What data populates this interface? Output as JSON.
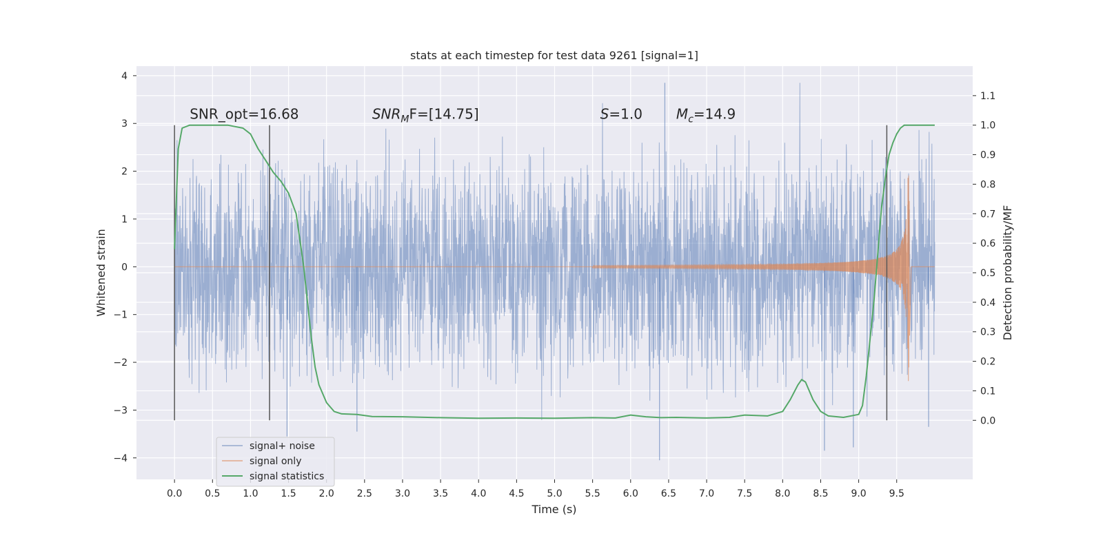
{
  "chart_data": {
    "type": "line",
    "title": "stats at each timestep for test data 9261 [signal=1]",
    "xlabel": "Time (s)",
    "ylabel_left": "Whitened strain",
    "ylabel_right": "Detection probability/MF",
    "xlim": [
      -0.5,
      10.5
    ],
    "ylim_left": [
      -4.45,
      4.2
    ],
    "ylim_right": [
      -0.2,
      1.2
    ],
    "x_ticks": [
      "0.0",
      "0.5",
      "1.0",
      "1.5",
      "2.0",
      "2.5",
      "3.0",
      "3.5",
      "4.0",
      "4.5",
      "5.0",
      "5.5",
      "6.0",
      "6.5",
      "7.0",
      "7.5",
      "8.0",
      "8.5",
      "9.0",
      "9.5"
    ],
    "y_ticks_left": [
      "−4",
      "−3",
      "−2",
      "−1",
      "0",
      "1",
      "2",
      "3",
      "4"
    ],
    "y_ticks_right": [
      "0.0",
      "0.1",
      "0.2",
      "0.3",
      "0.4",
      "0.5",
      "0.6",
      "0.7",
      "0.8",
      "0.9",
      "1.0",
      "1.1"
    ],
    "grid": true,
    "legend_position": "lower-left",
    "series": [
      {
        "name": "signal+ noise",
        "color": "#4c72b0",
        "axis": "left",
        "x_range": [
          0,
          10
        ],
        "envelope": 1.6,
        "peak_max": 3.85,
        "peak_min": -4.05
      },
      {
        "name": "signal only",
        "color": "#dd8452",
        "axis": "left",
        "chirp_start": 5.5,
        "merger_time": 9.67,
        "peak_amplitude": 2.4
      },
      {
        "name": "signal statistics",
        "color": "#55a868",
        "axis": "right",
        "x": [
          0.0,
          0.05,
          0.1,
          0.2,
          0.3,
          0.5,
          0.7,
          0.9,
          1.0,
          1.1,
          1.2,
          1.3,
          1.4,
          1.5,
          1.6,
          1.7,
          1.75,
          1.8,
          1.85,
          1.9,
          2.0,
          2.1,
          2.2,
          2.4,
          2.6,
          3.0,
          3.5,
          4.0,
          4.5,
          5.0,
          5.5,
          5.8,
          6.0,
          6.2,
          6.4,
          6.6,
          7.0,
          7.3,
          7.5,
          7.8,
          8.0,
          8.1,
          8.2,
          8.25,
          8.3,
          8.4,
          8.5,
          8.6,
          8.8,
          9.0,
          9.05,
          9.1,
          9.2,
          9.3,
          9.35,
          9.4,
          9.45,
          9.5,
          9.55,
          9.6,
          9.7,
          10.0
        ],
        "y": [
          0.58,
          0.92,
          0.99,
          1.0,
          1.0,
          1.0,
          1.0,
          0.99,
          0.97,
          0.92,
          0.88,
          0.84,
          0.81,
          0.77,
          0.7,
          0.52,
          0.4,
          0.28,
          0.18,
          0.12,
          0.06,
          0.03,
          0.022,
          0.02,
          0.013,
          0.012,
          0.009,
          0.007,
          0.008,
          0.007,
          0.009,
          0.008,
          0.018,
          0.012,
          0.009,
          0.01,
          0.008,
          0.01,
          0.018,
          0.015,
          0.03,
          0.07,
          0.12,
          0.138,
          0.13,
          0.07,
          0.03,
          0.015,
          0.01,
          0.02,
          0.05,
          0.15,
          0.4,
          0.72,
          0.82,
          0.9,
          0.94,
          0.97,
          0.99,
          1.0,
          1.0,
          1.0
        ]
      }
    ],
    "vlines": [
      0.0,
      1.25,
      9.37
    ],
    "annotations": [
      {
        "id": "snr_opt",
        "x": 0.2,
        "y": 3.1,
        "text": "SNR_opt=16.68"
      },
      {
        "id": "snr_mf",
        "x": 2.6,
        "y": 3.1,
        "text_main": "SNR",
        "text_sub": "M",
        "text_rest": "F=[14.75]"
      },
      {
        "id": "s",
        "x": 5.6,
        "y": 3.1,
        "text_main": "S",
        "text_rest": "=1.0"
      },
      {
        "id": "mc",
        "x": 6.6,
        "y": 3.1,
        "text_main": "M",
        "text_sub": "c",
        "text_rest": "=14.9"
      }
    ]
  }
}
